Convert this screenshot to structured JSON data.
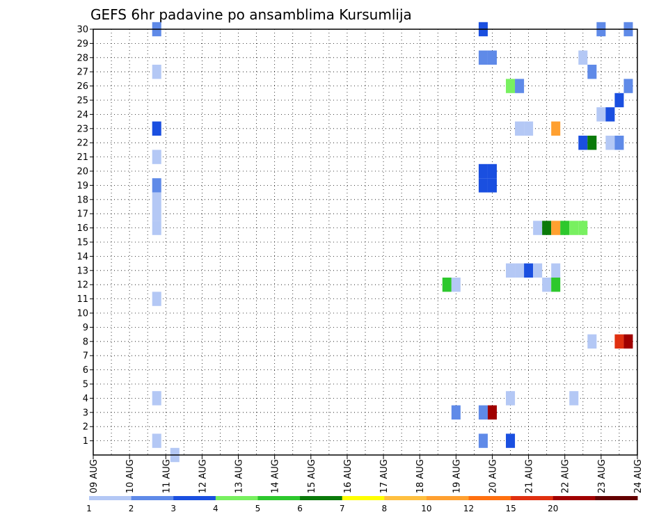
{
  "chart_data": {
    "type": "heatmap",
    "title": "GEFS 6hr padavine po ansamblima Kursumlija",
    "x_tick_labels": [
      "09 AUG",
      "10 AUG",
      "11 AUG",
      "12 AUG",
      "13 AUG",
      "14 AUG",
      "15 AUG",
      "16 AUG",
      "17 AUG",
      "18 AUG",
      "19 AUG",
      "20 AUG",
      "21 AUG",
      "22 AUG",
      "23 AUG",
      "24 AUG"
    ],
    "y_tick_labels": [
      "1",
      "2",
      "3",
      "4",
      "5",
      "6",
      "7",
      "8",
      "9",
      "10",
      "11",
      "12",
      "13",
      "14",
      "15",
      "16",
      "17",
      "18",
      "19",
      "20",
      "21",
      "22",
      "23",
      "24",
      "25",
      "26",
      "27",
      "28",
      "29",
      "30"
    ],
    "x_range_days": [
      0,
      15
    ],
    "y_range": [
      0,
      30
    ],
    "grid": "dotted",
    "color_scale": {
      "labels": [
        "1",
        "2",
        "3",
        "4",
        "5",
        "6",
        "7",
        "8",
        "10",
        "12",
        "15",
        "20"
      ],
      "colors": [
        "#b4c8f5",
        "#5f8ae8",
        "#1a4fe0",
        "#78f060",
        "#2dc82d",
        "#0a7a0a",
        "#ffff00",
        "#ffc040",
        "#ffa030",
        "#ff7010",
        "#e03010",
        "#a00000",
        "#640000"
      ]
    },
    "cells": [
      {
        "day": 1.75,
        "member": 30,
        "cls": 1
      },
      {
        "day": 1.75,
        "member": 27,
        "cls": 0
      },
      {
        "day": 1.75,
        "member": 23,
        "cls": 2
      },
      {
        "day": 1.75,
        "member": 21,
        "cls": 0
      },
      {
        "day": 1.75,
        "member": 19,
        "cls": 1
      },
      {
        "day": 1.75,
        "member": 18,
        "cls": 0
      },
      {
        "day": 1.75,
        "member": 17,
        "cls": 0
      },
      {
        "day": 1.75,
        "member": 16,
        "cls": 0
      },
      {
        "day": 1.75,
        "member": 11,
        "cls": 0
      },
      {
        "day": 1.75,
        "member": 4,
        "cls": 0
      },
      {
        "day": 1.75,
        "member": 1,
        "cls": 0
      },
      {
        "day": 2.25,
        "member": 0,
        "cls": 0
      },
      {
        "day": 9.75,
        "member": 12,
        "cls": 4
      },
      {
        "day": 10.0,
        "member": 12,
        "cls": 0
      },
      {
        "day": 10.0,
        "member": 3,
        "cls": 1
      },
      {
        "day": 10.75,
        "member": 30,
        "cls": 2
      },
      {
        "day": 10.75,
        "member": 28,
        "cls": 1
      },
      {
        "day": 11.0,
        "member": 28,
        "cls": 1
      },
      {
        "day": 10.75,
        "member": 20,
        "cls": 2
      },
      {
        "day": 11.0,
        "member": 20,
        "cls": 2
      },
      {
        "day": 10.75,
        "member": 19,
        "cls": 2
      },
      {
        "day": 11.0,
        "member": 19,
        "cls": 2
      },
      {
        "day": 10.75,
        "member": 3,
        "cls": 1
      },
      {
        "day": 11.0,
        "member": 3,
        "cls": 11
      },
      {
        "day": 10.75,
        "member": 1,
        "cls": 1
      },
      {
        "day": 11.5,
        "member": 26,
        "cls": 3
      },
      {
        "day": 11.75,
        "member": 26,
        "cls": 1
      },
      {
        "day": 11.5,
        "member": 13,
        "cls": 0
      },
      {
        "day": 11.75,
        "member": 13,
        "cls": 0
      },
      {
        "day": 12.0,
        "member": 13,
        "cls": 2
      },
      {
        "day": 12.25,
        "member": 13,
        "cls": 0
      },
      {
        "day": 11.5,
        "member": 4,
        "cls": 0
      },
      {
        "day": 11.5,
        "member": 1,
        "cls": 2
      },
      {
        "day": 11.75,
        "member": 23,
        "cls": 0
      },
      {
        "day": 12.0,
        "member": 23,
        "cls": 0
      },
      {
        "day": 12.25,
        "member": 16,
        "cls": 0
      },
      {
        "day": 12.5,
        "member": 16,
        "cls": 5
      },
      {
        "day": 12.75,
        "member": 16,
        "cls": 8
      },
      {
        "day": 13.0,
        "member": 16,
        "cls": 4
      },
      {
        "day": 13.25,
        "member": 16,
        "cls": 3
      },
      {
        "day": 13.5,
        "member": 16,
        "cls": 3
      },
      {
        "day": 12.5,
        "member": 12,
        "cls": 0
      },
      {
        "day": 12.75,
        "member": 12,
        "cls": 4
      },
      {
        "day": 12.75,
        "member": 13,
        "cls": 0
      },
      {
        "day": 12.75,
        "member": 23,
        "cls": 8
      },
      {
        "day": 13.25,
        "member": 4,
        "cls": 0
      },
      {
        "day": 13.5,
        "member": 28,
        "cls": 0
      },
      {
        "day": 13.5,
        "member": 22,
        "cls": 2
      },
      {
        "day": 13.75,
        "member": 22,
        "cls": 5
      },
      {
        "day": 13.75,
        "member": 27,
        "cls": 1
      },
      {
        "day": 13.75,
        "member": 8,
        "cls": 0
      },
      {
        "day": 14.0,
        "member": 30,
        "cls": 1
      },
      {
        "day": 14.0,
        "member": 24,
        "cls": 0
      },
      {
        "day": 14.25,
        "member": 24,
        "cls": 2
      },
      {
        "day": 14.25,
        "member": 22,
        "cls": 0
      },
      {
        "day": 14.5,
        "member": 22,
        "cls": 1
      },
      {
        "day": 14.5,
        "member": 25,
        "cls": 2
      },
      {
        "day": 14.5,
        "member": 8,
        "cls": 10
      },
      {
        "day": 14.75,
        "member": 8,
        "cls": 11
      },
      {
        "day": 14.75,
        "member": 30,
        "cls": 1
      },
      {
        "day": 14.75,
        "member": 26,
        "cls": 1
      }
    ]
  }
}
